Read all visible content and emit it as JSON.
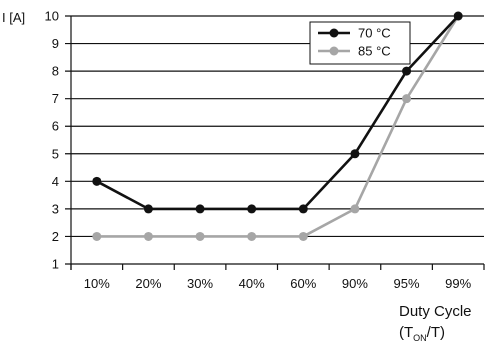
{
  "chart_data": {
    "type": "line",
    "title": "",
    "ylabel": "I [A]",
    "xlabel": {
      "line1": "Duty Cycle",
      "line2_prefix": "(T",
      "line2_sub": "ON",
      "line2_suffix": "/T)"
    },
    "categories": [
      "10%",
      "20%",
      "30%",
      "40%",
      "60%",
      "90%",
      "95%",
      "99%"
    ],
    "ylim": [
      1,
      10
    ],
    "yticks": [
      1,
      2,
      3,
      4,
      5,
      6,
      7,
      8,
      9,
      10
    ],
    "grid": true,
    "legend_position": "top-right",
    "series": [
      {
        "name": "70 °C",
        "color": "#111111",
        "values": [
          4,
          3,
          3,
          3,
          3,
          5,
          8,
          10
        ]
      },
      {
        "name": "85 °C",
        "color": "#a6a6a6",
        "values": [
          2,
          2,
          2,
          2,
          2,
          3,
          7,
          10
        ]
      }
    ]
  }
}
